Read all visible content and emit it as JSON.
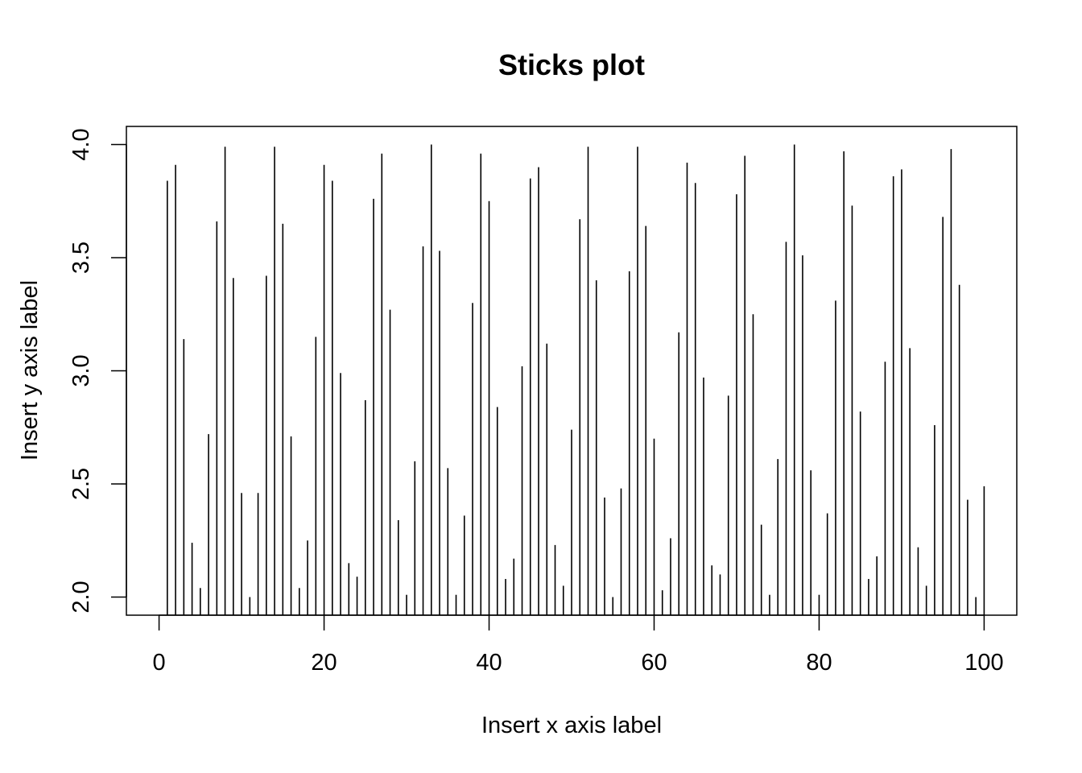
{
  "chart_data": {
    "type": "sticks",
    "title": "Sticks plot",
    "xlabel": "Insert x axis label",
    "ylabel": "Insert y axis label",
    "xlim": [
      -3.96,
      103.96
    ],
    "ylim": [
      1.92,
      4.08
    ],
    "x_ticks": [
      0,
      20,
      40,
      60,
      80,
      100
    ],
    "x_tick_labels": [
      "0",
      "20",
      "40",
      "60",
      "80",
      "100"
    ],
    "y_ticks": [
      2.0,
      2.5,
      3.0,
      3.5,
      4.0
    ],
    "y_tick_labels": [
      "2.0",
      "2.5",
      "3.0",
      "3.5",
      "4.0"
    ],
    "grid": false,
    "color": "#000000",
    "x": [
      1,
      2,
      3,
      4,
      5,
      6,
      7,
      8,
      9,
      10,
      11,
      12,
      13,
      14,
      15,
      16,
      17,
      18,
      19,
      20,
      21,
      22,
      23,
      24,
      25,
      26,
      27,
      28,
      29,
      30,
      31,
      32,
      33,
      34,
      35,
      36,
      37,
      38,
      39,
      40,
      41,
      42,
      43,
      44,
      45,
      46,
      47,
      48,
      49,
      50,
      51,
      52,
      53,
      54,
      55,
      56,
      57,
      58,
      59,
      60,
      61,
      62,
      63,
      64,
      65,
      66,
      67,
      68,
      69,
      70,
      71,
      72,
      73,
      74,
      75,
      76,
      77,
      78,
      79,
      80,
      81,
      82,
      83,
      84,
      85,
      86,
      87,
      88,
      89,
      90,
      91,
      92,
      93,
      94,
      95,
      96,
      97,
      98,
      99,
      100
    ],
    "values": [
      3.84,
      3.91,
      3.14,
      2.24,
      2.04,
      2.72,
      3.66,
      3.99,
      3.41,
      2.46,
      2.0,
      2.46,
      3.42,
      3.99,
      3.65,
      2.71,
      2.04,
      2.25,
      3.15,
      3.91,
      3.84,
      2.99,
      2.15,
      2.09,
      2.87,
      3.76,
      3.96,
      3.27,
      2.34,
      2.01,
      2.6,
      3.55,
      4.0,
      3.53,
      2.57,
      2.01,
      2.36,
      3.3,
      3.96,
      3.75,
      2.84,
      2.08,
      2.17,
      3.02,
      3.85,
      3.9,
      3.12,
      2.23,
      2.05,
      2.74,
      3.67,
      3.99,
      3.4,
      2.44,
      2.0,
      2.48,
      3.44,
      3.99,
      3.64,
      2.7,
      2.03,
      2.26,
      3.17,
      3.92,
      3.83,
      2.97,
      2.14,
      2.1,
      2.89,
      3.78,
      3.95,
      3.25,
      2.32,
      2.01,
      2.61,
      3.57,
      4.0,
      3.51,
      2.56,
      2.01,
      2.37,
      3.31,
      3.97,
      3.73,
      2.82,
      2.08,
      2.18,
      3.04,
      3.86,
      3.89,
      3.1,
      2.22,
      2.05,
      2.76,
      3.68,
      3.98,
      3.38,
      2.43,
      2.0,
      2.49
    ]
  }
}
